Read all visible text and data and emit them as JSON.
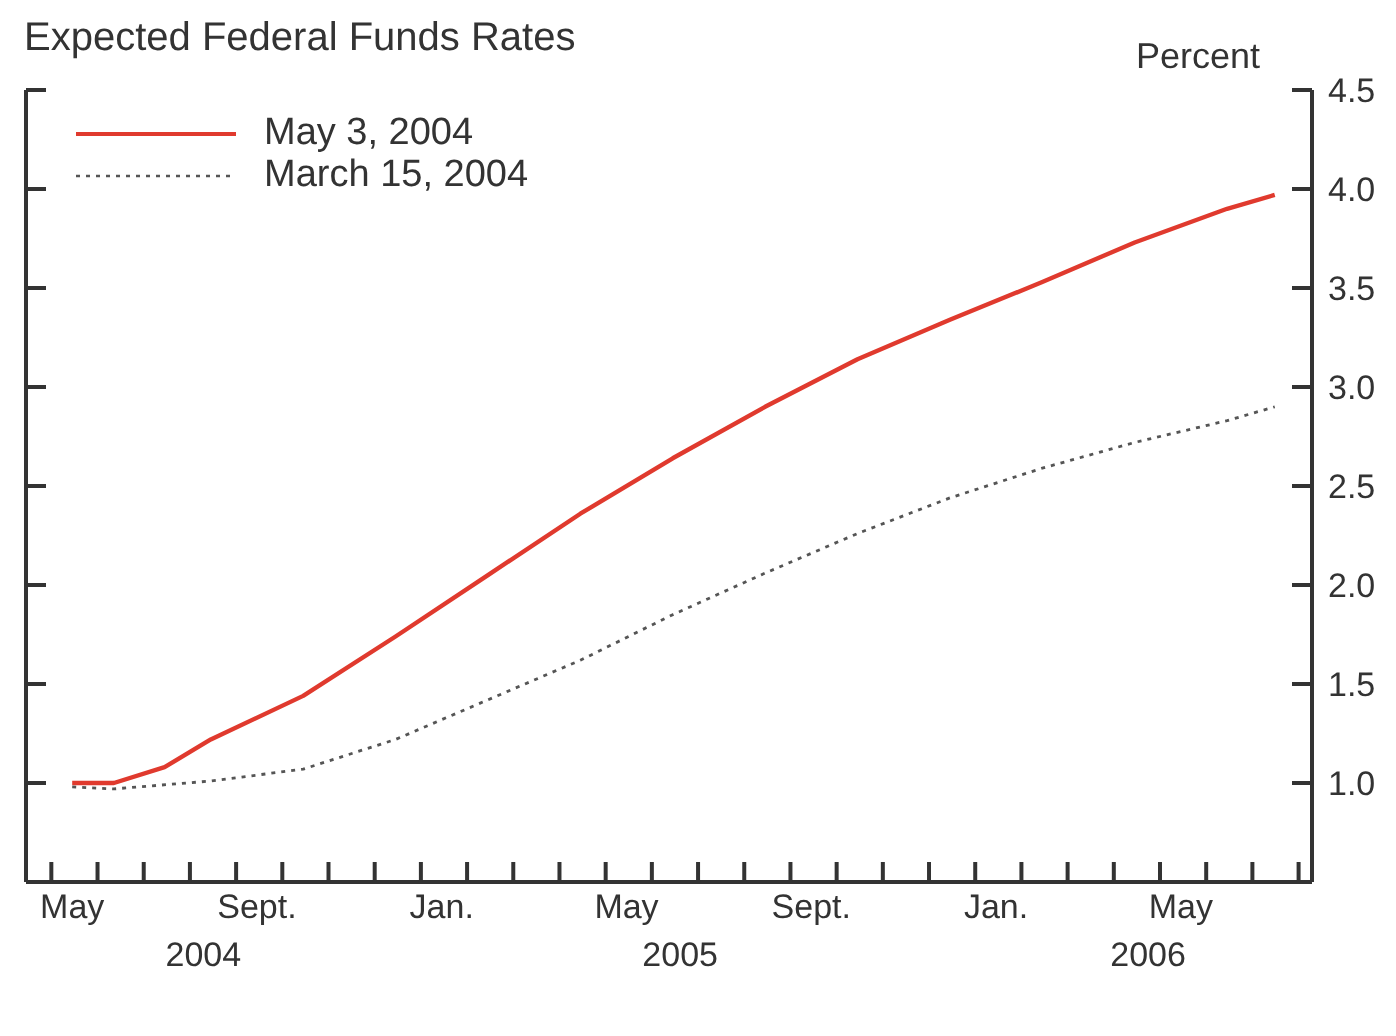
{
  "chart_data": {
    "type": "line",
    "title": "Expected Federal Funds Rates",
    "ylabel": "Percent",
    "xlim": [
      "2004-04-15",
      "2006-08-10"
    ],
    "xticks": [
      {
        "value": "2004-05-01",
        "label": null
      },
      {
        "value": "2004-06-01",
        "label": null
      },
      {
        "value": "2004-07-01",
        "label": null
      },
      {
        "value": "2004-08-01",
        "label": null
      },
      {
        "value": "2004-09-01",
        "label": null
      },
      {
        "value": "2004-10-01",
        "label": null
      },
      {
        "value": "2004-11-01",
        "label": null
      },
      {
        "value": "2004-12-01",
        "label": null
      },
      {
        "value": "2005-01-01",
        "label": null
      },
      {
        "value": "2005-02-01",
        "label": null
      },
      {
        "value": "2005-03-01",
        "label": null
      },
      {
        "value": "2005-04-01",
        "label": null
      },
      {
        "value": "2005-05-01",
        "label": null
      },
      {
        "value": "2005-06-01",
        "label": null
      },
      {
        "value": "2005-07-01",
        "label": null
      },
      {
        "value": "2005-08-01",
        "label": null
      },
      {
        "value": "2005-09-01",
        "label": null
      },
      {
        "value": "2005-10-01",
        "label": null
      },
      {
        "value": "2005-11-01",
        "label": null
      },
      {
        "value": "2005-12-01",
        "label": null
      },
      {
        "value": "2006-01-01",
        "label": null
      },
      {
        "value": "2006-02-01",
        "label": null
      },
      {
        "value": "2006-03-01",
        "label": null
      },
      {
        "value": "2006-04-01",
        "label": null
      },
      {
        "value": "2006-05-01",
        "label": null
      },
      {
        "value": "2006-06-01",
        "label": null
      },
      {
        "value": "2006-07-01",
        "label": null
      },
      {
        "value": "2006-08-01",
        "label": null
      },
      {
        "value": "2004-05-15",
        "label": "May"
      },
      {
        "value": "2004-09-15",
        "label": "Sept."
      },
      {
        "value": "2005-01-15",
        "label": "Jan."
      },
      {
        "value": "2005-05-15",
        "label": "May"
      },
      {
        "value": "2005-09-15",
        "label": "Sept."
      },
      {
        "value": "2006-01-15",
        "label": "Jan."
      },
      {
        "value": "2006-05-15",
        "label": "May"
      }
    ],
    "x2lim": [
      "2004-04-15",
      "2006-08-10"
    ],
    "x2ticks": [
      {
        "value": "2004-08-10",
        "label": "2004"
      },
      {
        "value": "2005-06-20",
        "label": "2005"
      },
      {
        "value": "2006-04-24",
        "label": "2006"
      }
    ],
    "ylim": [
      0.5,
      4.5
    ],
    "yticks": [
      {
        "value": 1,
        "label": "1.0"
      },
      1.5,
      {
        "value": 2,
        "label": "2.0"
      },
      2.5,
      {
        "value": 3,
        "label": "3.0"
      },
      3.5,
      {
        "value": 4,
        "label": "4.0"
      },
      4.5
    ],
    "grid": false,
    "legend": "top left",
    "series": [
      {
        "name": "May 3, 2004",
        "color": "#e03a2e",
        "line_style": "solid",
        "x": [
          "2004-05-15",
          "2004-06-12",
          "2004-07-15",
          "2004-08-15",
          "2004-10-15",
          "2004-12-15",
          "2005-02-15",
          "2005-04-15",
          "2005-06-15",
          "2005-08-15",
          "2005-10-15",
          "2005-12-15",
          "2006-02-15",
          "2006-04-15",
          "2006-06-15",
          "2006-07-16"
        ],
        "values": [
          1.0,
          1.0,
          1.08,
          1.22,
          1.44,
          1.74,
          2.05,
          2.36,
          2.64,
          2.9,
          3.14,
          3.34,
          3.53,
          3.73,
          3.9,
          3.97
        ]
      },
      {
        "name": "March 15, 2004",
        "color": "#555555",
        "line_style": "dotted",
        "x": [
          "2004-05-15",
          "2004-06-12",
          "2004-08-15",
          "2004-10-15",
          "2004-12-15",
          "2005-02-15",
          "2005-04-15",
          "2005-06-15",
          "2005-08-15",
          "2005-10-15",
          "2005-12-15",
          "2006-02-15",
          "2006-04-15",
          "2006-06-15",
          "2006-07-16"
        ],
        "values": [
          0.98,
          0.97,
          1.01,
          1.07,
          1.22,
          1.42,
          1.62,
          1.85,
          2.06,
          2.26,
          2.44,
          2.59,
          2.72,
          2.83,
          2.9
        ]
      }
    ]
  }
}
